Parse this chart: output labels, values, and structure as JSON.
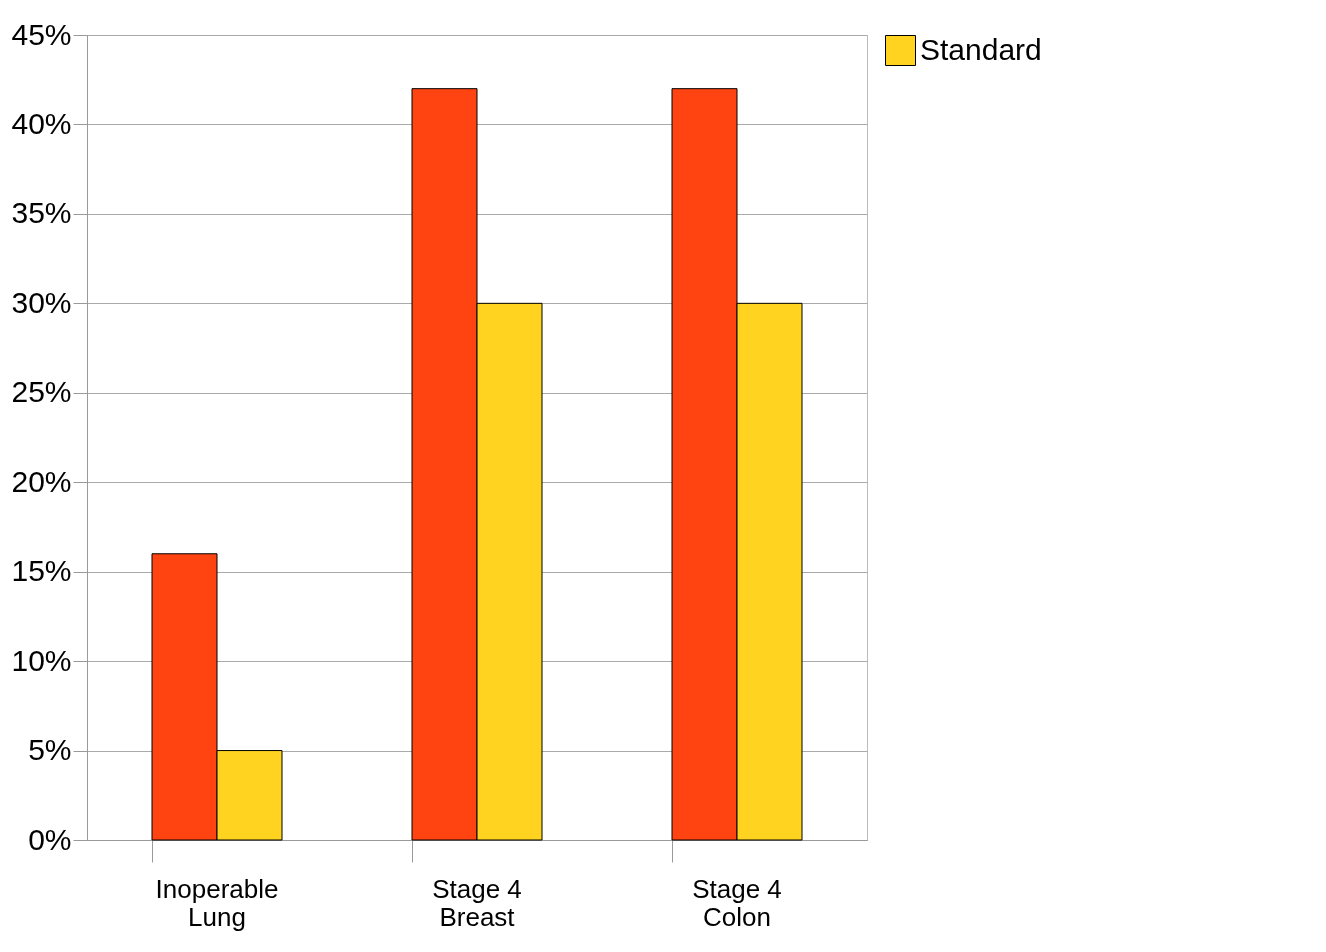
{
  "chart_data": {
    "type": "bar",
    "categories": [
      "Inoperable\nLung",
      "Stage 4\nBreast",
      "Stage 4\nColon"
    ],
    "series": [
      {
        "color": "#ff4411",
        "values": [
          16,
          42,
          42
        ]
      },
      {
        "name": "Standard",
        "color": "#ffd320",
        "values": [
          5,
          30,
          30
        ]
      }
    ],
    "ylim": [
      0,
      45
    ],
    "yticks": [
      {
        "value": 0,
        "label": "0%"
      },
      {
        "value": 5,
        "label": "5%"
      },
      {
        "value": 10,
        "label": "10%"
      },
      {
        "value": 15,
        "label": "15%"
      },
      {
        "value": 20,
        "label": "20%"
      },
      {
        "value": 25,
        "label": "25%"
      },
      {
        "value": 30,
        "label": "30%"
      },
      {
        "value": 35,
        "label": "35%"
      },
      {
        "value": 40,
        "label": "40%"
      },
      {
        "value": 45,
        "label": "45%"
      }
    ],
    "grid": "y",
    "legend": "right"
  }
}
